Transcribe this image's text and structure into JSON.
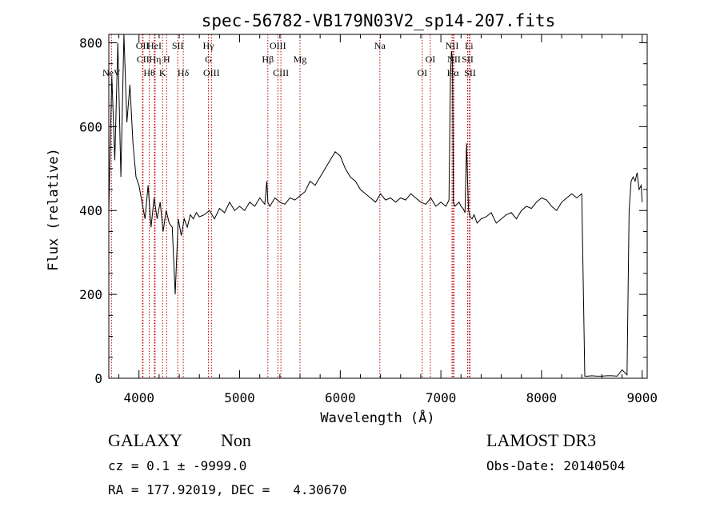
{
  "chart_data": {
    "type": "line",
    "title": "spec-56782-VB179N03V2_sp14-207.fits",
    "xlabel": "Wavelength (Å)",
    "ylabel": "Flux (relative)",
    "xlim": [
      3700,
      9050
    ],
    "ylim": [
      0,
      820
    ],
    "xticks": [
      4000,
      5000,
      6000,
      7000,
      8000,
      9000
    ],
    "yticks": [
      0,
      200,
      400,
      600,
      800
    ],
    "grid": false,
    "line_color": "#000000",
    "marker_color": "#c00000",
    "lines": [
      {
        "label": "NeV",
        "x": 3726,
        "row": 3
      },
      {
        "label": "OII",
        "x": 4035,
        "row": 1
      },
      {
        "label": "CII",
        "x": 4040,
        "row": 2
      },
      {
        "label": "Hθ",
        "x": 4102,
        "row": 3
      },
      {
        "label": "HeI",
        "x": 4153,
        "row": 1
      },
      {
        "label": "Hη",
        "x": 4160,
        "row": 2
      },
      {
        "label": "K",
        "x": 4234,
        "row": 3
      },
      {
        "label": "H",
        "x": 4275,
        "row": 2
      },
      {
        "label": "SII",
        "x": 4385,
        "row": 1
      },
      {
        "label": "Hδ",
        "x": 4440,
        "row": 3
      },
      {
        "label": "Hγ",
        "x": 4690,
        "row": 1
      },
      {
        "label": "G",
        "x": 4690,
        "row": 2
      },
      {
        "label": "OIII",
        "x": 4720,
        "row": 3
      },
      {
        "label": "Hβ",
        "x": 5280,
        "row": 2
      },
      {
        "label": "OIII",
        "x": 5380,
        "row": 1
      },
      {
        "label": "CIII",
        "x": 5410,
        "row": 3
      },
      {
        "label": "Mg",
        "x": 5600,
        "row": 2
      },
      {
        "label": "Na",
        "x": 6393,
        "row": 1
      },
      {
        "label": "OI",
        "x": 6815,
        "row": 3
      },
      {
        "label": "OI",
        "x": 6895,
        "row": 2
      },
      {
        "label": "NII",
        "x": 7110,
        "row": 1
      },
      {
        "label": "NII",
        "x": 7130,
        "row": 2
      },
      {
        "label": "Hα",
        "x": 7120,
        "row": 3
      },
      {
        "label": "Li",
        "x": 7280,
        "row": 1
      },
      {
        "label": "SII",
        "x": 7265,
        "row": 2
      },
      {
        "label": "SII",
        "x": 7290,
        "row": 3
      }
    ],
    "spectrum": {
      "x": [
        3700,
        3730,
        3760,
        3790,
        3820,
        3850,
        3880,
        3910,
        3940,
        3970,
        4000,
        4030,
        4060,
        4090,
        4120,
        4150,
        4180,
        4210,
        4240,
        4270,
        4300,
        4330,
        4360,
        4390,
        4420,
        4450,
        4480,
        4510,
        4540,
        4570,
        4600,
        4650,
        4700,
        4750,
        4800,
        4850,
        4900,
        4950,
        5000,
        5050,
        5100,
        5150,
        5200,
        5250,
        5270,
        5280,
        5300,
        5350,
        5400,
        5450,
        5500,
        5550,
        5600,
        5650,
        5700,
        5750,
        5800,
        5850,
        5900,
        5950,
        6000,
        6050,
        6100,
        6150,
        6200,
        6250,
        6300,
        6350,
        6400,
        6450,
        6500,
        6550,
        6600,
        6650,
        6700,
        6750,
        6800,
        6850,
        6900,
        6950,
        7000,
        7050,
        7080,
        7095,
        7105,
        7115,
        7125,
        7140,
        7160,
        7180,
        7200,
        7220,
        7240,
        7255,
        7265,
        7275,
        7290,
        7310,
        7330,
        7360,
        7400,
        7450,
        7500,
        7550,
        7600,
        7650,
        7700,
        7750,
        7800,
        7850,
        7900,
        7950,
        8000,
        8050,
        8100,
        8150,
        8200,
        8250,
        8300,
        8350,
        8400,
        8430,
        8445,
        8460,
        8500,
        8550,
        8600,
        8650,
        8700,
        8750,
        8800,
        8850,
        8870,
        8890,
        8910,
        8930,
        8950,
        8970,
        8990,
        9000
      ],
      "flux": [
        400,
        720,
        520,
        800,
        480,
        820,
        610,
        700,
        560,
        480,
        460,
        420,
        380,
        460,
        360,
        430,
        380,
        420,
        350,
        400,
        370,
        360,
        200,
        380,
        340,
        380,
        360,
        390,
        380,
        395,
        385,
        390,
        400,
        380,
        405,
        395,
        420,
        400,
        410,
        400,
        420,
        410,
        430,
        415,
        470,
        420,
        410,
        430,
        420,
        415,
        430,
        425,
        435,
        445,
        470,
        460,
        480,
        500,
        520,
        540,
        530,
        500,
        480,
        470,
        450,
        440,
        430,
        420,
        440,
        425,
        430,
        420,
        430,
        425,
        440,
        430,
        420,
        415,
        430,
        410,
        420,
        410,
        425,
        720,
        780,
        760,
        420,
        410,
        415,
        420,
        410,
        405,
        395,
        560,
        470,
        400,
        385,
        380,
        390,
        370,
        380,
        385,
        395,
        370,
        380,
        390,
        395,
        380,
        400,
        410,
        405,
        420,
        430,
        425,
        410,
        400,
        420,
        430,
        440,
        430,
        440,
        5,
        5,
        5,
        6,
        5,
        5,
        6,
        6,
        5,
        20,
        8,
        400,
        470,
        480,
        470,
        490,
        450,
        460,
        420
      ]
    }
  },
  "info": {
    "class_label": "GALAXY",
    "subclass": "Non",
    "survey": "LAMOST DR3",
    "cz": "cz = 0.1 ± -9999.0",
    "obs_date": "Obs-Date: 20140504",
    "coords": "RA = 177.92019, DEC =   4.30670"
  }
}
